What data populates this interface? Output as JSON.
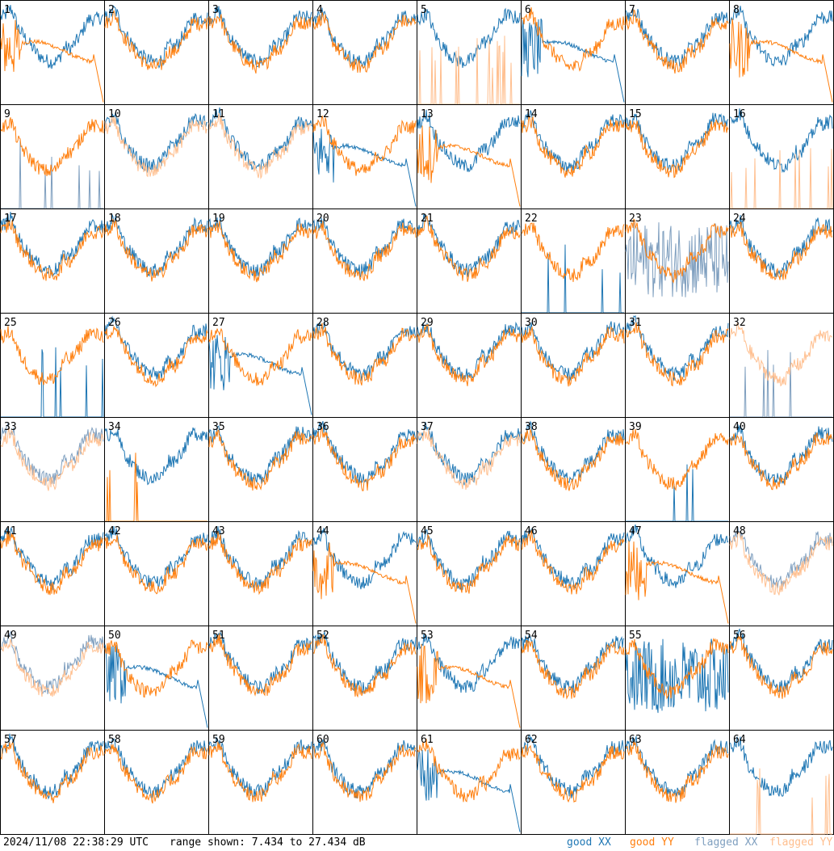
{
  "timestamp": "2024/11/08 22:38:29 UTC",
  "range_text": "range shown: 7.434 to 27.434 dB",
  "legend": [
    {
      "label": "good XX",
      "color": "#1f77b4"
    },
    {
      "label": "good YY",
      "color": "#ff7f0e"
    },
    {
      "label": "flagged XX",
      "color": "#7f9fbf"
    },
    {
      "label": "flagged YY",
      "color": "#ffbf8f"
    }
  ],
  "chart_data": {
    "type": "line",
    "panel_labels": [
      "1",
      "2",
      "3",
      "4",
      "5",
      "6",
      "7",
      "8",
      "9",
      "10",
      "11",
      "12",
      "13",
      "14",
      "15",
      "16",
      "17",
      "18",
      "19",
      "20",
      "21",
      "22",
      "23",
      "24",
      "25",
      "26",
      "27",
      "28",
      "29",
      "30",
      "31",
      "32",
      "33",
      "34",
      "35",
      "36",
      "37",
      "38",
      "39",
      "40",
      "41",
      "42",
      "43",
      "44",
      "45",
      "46",
      "47",
      "48",
      "49",
      "50",
      "51",
      "52",
      "53",
      "54",
      "55",
      "56",
      "57",
      "58",
      "59",
      "60",
      "61",
      "62",
      "63",
      "64"
    ],
    "ylim": [
      7.434,
      27.434
    ],
    "units": "dB",
    "grid": false,
    "panels": [
      {
        "xx": "normal",
        "yy": "broken"
      },
      {
        "xx": "normal",
        "yy": "normal"
      },
      {
        "xx": "normal",
        "yy": "normal"
      },
      {
        "xx": "normal",
        "yy": "normal"
      },
      {
        "xx": "normal",
        "yy": "spikes_flagged"
      },
      {
        "xx": "broken",
        "yy": "normal"
      },
      {
        "xx": "normal",
        "yy": "normal"
      },
      {
        "xx": "normal",
        "yy": "broken"
      },
      {
        "xx": "spikes_flagged",
        "yy": "normal"
      },
      {
        "xx": "normal",
        "yy": "normal_flagged"
      },
      {
        "xx": "normal",
        "yy": "normal_flagged"
      },
      {
        "xx": "broken",
        "yy": "normal"
      },
      {
        "xx": "normal",
        "yy": "broken"
      },
      {
        "xx": "normal",
        "yy": "normal"
      },
      {
        "xx": "normal",
        "yy": "normal"
      },
      {
        "xx": "normal",
        "yy": "spikes_flagged"
      },
      {
        "xx": "normal",
        "yy": "normal"
      },
      {
        "xx": "normal",
        "yy": "normal"
      },
      {
        "xx": "normal",
        "yy": "normal"
      },
      {
        "xx": "normal",
        "yy": "normal"
      },
      {
        "xx": "normal",
        "yy": "normal"
      },
      {
        "xx": "spikes",
        "yy": "normal"
      },
      {
        "xx": "noise_flagged",
        "yy": "normal"
      },
      {
        "xx": "normal",
        "yy": "normal"
      },
      {
        "xx": "spikes",
        "yy": "normal"
      },
      {
        "xx": "normal",
        "yy": "normal"
      },
      {
        "xx": "broken",
        "yy": "normal"
      },
      {
        "xx": "normal",
        "yy": "normal"
      },
      {
        "xx": "normal",
        "yy": "normal"
      },
      {
        "xx": "normal",
        "yy": "normal"
      },
      {
        "xx": "normal",
        "yy": "normal"
      },
      {
        "xx": "spikes_flagged",
        "yy": "normal_flagged"
      },
      {
        "xx": "normal_flagged",
        "yy": "normal_flagged"
      },
      {
        "xx": "normal",
        "yy": "spikes"
      },
      {
        "xx": "normal",
        "yy": "normal"
      },
      {
        "xx": "normal",
        "yy": "normal"
      },
      {
        "xx": "normal",
        "yy": "normal_flagged"
      },
      {
        "xx": "normal",
        "yy": "normal"
      },
      {
        "xx": "spikes",
        "yy": "normal"
      },
      {
        "xx": "normal",
        "yy": "normal"
      },
      {
        "xx": "normal",
        "yy": "normal"
      },
      {
        "xx": "normal",
        "yy": "normal"
      },
      {
        "xx": "normal",
        "yy": "normal"
      },
      {
        "xx": "normal",
        "yy": "broken"
      },
      {
        "xx": "normal",
        "yy": "normal"
      },
      {
        "xx": "normal",
        "yy": "normal"
      },
      {
        "xx": "normal",
        "yy": "broken"
      },
      {
        "xx": "normal_flagged",
        "yy": "normal_flagged"
      },
      {
        "xx": "normal_flagged",
        "yy": "normal_flagged"
      },
      {
        "xx": "broken",
        "yy": "normal"
      },
      {
        "xx": "normal",
        "yy": "normal"
      },
      {
        "xx": "normal",
        "yy": "normal"
      },
      {
        "xx": "normal",
        "yy": "broken"
      },
      {
        "xx": "normal",
        "yy": "normal"
      },
      {
        "xx": "noise",
        "yy": "normal"
      },
      {
        "xx": "normal",
        "yy": "normal"
      },
      {
        "xx": "normal",
        "yy": "normal"
      },
      {
        "xx": "normal",
        "yy": "normal"
      },
      {
        "xx": "normal",
        "yy": "normal"
      },
      {
        "xx": "normal",
        "yy": "normal"
      },
      {
        "xx": "broken",
        "yy": "normal"
      },
      {
        "xx": "normal",
        "yy": "normal"
      },
      {
        "xx": "normal",
        "yy": "normal"
      },
      {
        "xx": "normal",
        "yy": "spikes_flagged"
      }
    ]
  }
}
